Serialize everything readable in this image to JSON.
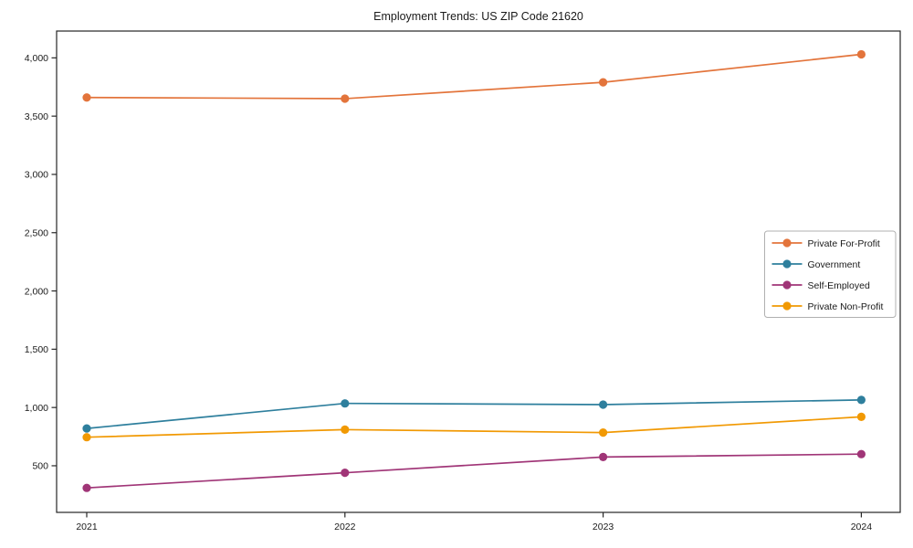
{
  "page": {
    "title": "Employment Trends: US ZIP Code 21620"
  },
  "chart_data": {
    "type": "line",
    "title": "Employment Trends: US ZIP Code 21620",
    "xlabel": "",
    "ylabel": "",
    "x": [
      "2021",
      "2022",
      "2023",
      "2024"
    ],
    "series": [
      {
        "name": "Private For-Profit",
        "color": "#E3743B",
        "values": [
          3660,
          3650,
          3790,
          4030
        ]
      },
      {
        "name": "Government",
        "color": "#2E7F9D",
        "values": [
          820,
          1035,
          1025,
          1065
        ]
      },
      {
        "name": "Self-Employed",
        "color": "#A03577",
        "values": [
          310,
          440,
          575,
          600
        ]
      },
      {
        "name": "Private Non-Profit",
        "color": "#F19903",
        "values": [
          745,
          810,
          785,
          920
        ]
      }
    ],
    "yticks": [
      {
        "value": 500,
        "label": "500"
      },
      {
        "value": 1000,
        "label": "1,000"
      },
      {
        "value": 1500,
        "label": "1,500"
      },
      {
        "value": 2000,
        "label": "2,000"
      },
      {
        "value": 2500,
        "label": "2,500"
      },
      {
        "value": 3000,
        "label": "3,000"
      },
      {
        "value": 3500,
        "label": "3,500"
      },
      {
        "value": 4000,
        "label": "4,000"
      }
    ],
    "ylim": [
      100,
      4230
    ],
    "grid": false,
    "legend_position": "center right",
    "colors": {
      "axis": "#262626",
      "legend_border": "#b0b0b0",
      "background": "#ffffff"
    }
  }
}
